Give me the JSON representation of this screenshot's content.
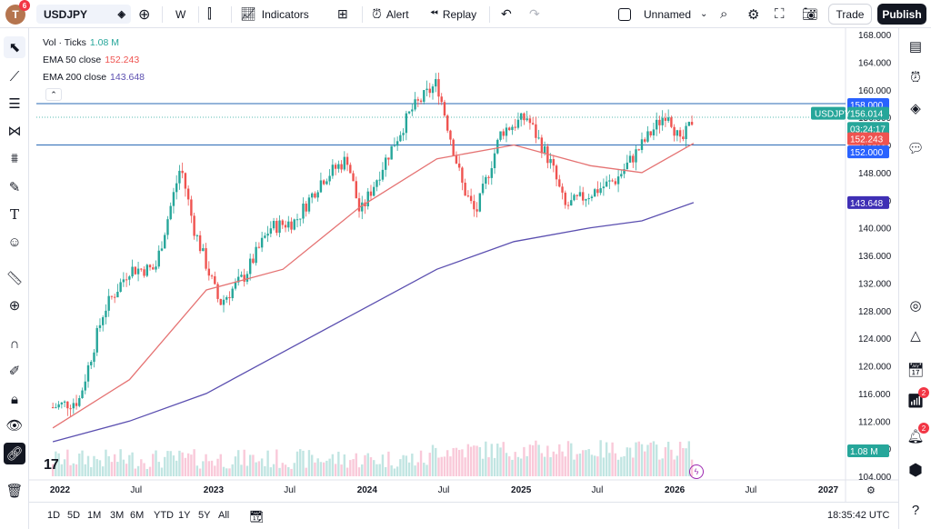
{
  "header": {
    "avatar_letter": "T",
    "avatar_badge": "6",
    "symbol": "USDJPY",
    "interval": "W",
    "indicators_label": "Indicators",
    "alert_label": "Alert",
    "replay_label": "Replay",
    "layout_name": "Unnamed",
    "trade_label": "Trade",
    "publish_label": "Publish"
  },
  "legend": {
    "vol_label": "Vol · Ticks",
    "vol_value": "1.08 M",
    "ema50_label": "EMA 50 close",
    "ema50_value": "152.243",
    "ema200_label": "EMA 200 close",
    "ema200_value": "143.648"
  },
  "colors": {
    "up": "#26a69a",
    "down": "#ef5350",
    "ema50": "#e57373",
    "ema200": "#5b4fb0",
    "hline": "#2a6ab5",
    "accent": "#2962ff"
  },
  "price_axis": {
    "ticks": [
      "168.000",
      "164.000",
      "160.000",
      "156.000",
      "152.000",
      "148.000",
      "144.000",
      "140.000",
      "136.000",
      "132.000",
      "128.000",
      "124.000",
      "120.000",
      "116.000",
      "112.000",
      "108.000",
      "104.000"
    ],
    "labels": [
      {
        "text": "158.000",
        "kind": "line"
      },
      {
        "text": "156.014",
        "kind": "price"
      },
      {
        "text": "03:24:17",
        "kind": "countdown"
      },
      {
        "text": "152.243",
        "kind": "ema50"
      },
      {
        "text": "152.000",
        "kind": "line"
      },
      {
        "text": "143.648",
        "kind": "ema200"
      },
      {
        "text": "1.08 M",
        "kind": "volume"
      }
    ],
    "symbol_tag": "USDJPY"
  },
  "time_axis": [
    "2022",
    "Jul",
    "2023",
    "Jul",
    "2024",
    "Jul",
    "2025",
    "Jul",
    "2026",
    "Jul",
    "2027"
  ],
  "ranges": [
    "1D",
    "5D",
    "1M",
    "3M",
    "6M",
    "YTD",
    "1Y",
    "5Y",
    "All"
  ],
  "clock": "18:35:42 UTC",
  "right_badges": [
    "2",
    "2"
  ],
  "chart_data": {
    "type": "candlestick",
    "symbol": "USDJPY",
    "interval": "W",
    "ylim": [
      104,
      168
    ],
    "horizontal_lines": [
      158.0,
      152.0
    ],
    "current_price": 156.014,
    "path_keypoints": [
      {
        "x": "2021-12",
        "y": 114
      },
      {
        "x": "2022-02",
        "y": 115
      },
      {
        "x": "2022-04",
        "y": 128
      },
      {
        "x": "2022-06",
        "y": 134
      },
      {
        "x": "2022-08",
        "y": 134
      },
      {
        "x": "2022-10",
        "y": 149
      },
      {
        "x": "2022-11",
        "y": 140
      },
      {
        "x": "2023-01",
        "y": 129
      },
      {
        "x": "2023-03",
        "y": 133
      },
      {
        "x": "2023-05",
        "y": 140
      },
      {
        "x": "2023-07",
        "y": 141
      },
      {
        "x": "2023-09",
        "y": 147
      },
      {
        "x": "2023-11",
        "y": 150
      },
      {
        "x": "2023-12",
        "y": 142
      },
      {
        "x": "2024-02",
        "y": 150
      },
      {
        "x": "2024-04",
        "y": 157
      },
      {
        "x": "2024-06",
        "y": 161
      },
      {
        "x": "2024-08",
        "y": 146
      },
      {
        "x": "2024-09",
        "y": 142
      },
      {
        "x": "2024-11",
        "y": 154
      },
      {
        "x": "2025-01",
        "y": 156
      },
      {
        "x": "2025-03",
        "y": 149
      },
      {
        "x": "2025-04",
        "y": 143
      },
      {
        "x": "2025-06",
        "y": 145
      },
      {
        "x": "2025-08",
        "y": 147
      },
      {
        "x": "2025-10",
        "y": 152
      },
      {
        "x": "2025-12",
        "y": 157
      },
      {
        "x": "2026-01",
        "y": 152
      },
      {
        "x": "2026-02",
        "y": 156
      }
    ],
    "ema50_keypoints": [
      {
        "x": "2021-12",
        "y": 111
      },
      {
        "x": "2022-06",
        "y": 118
      },
      {
        "x": "2022-12",
        "y": 131
      },
      {
        "x": "2023-06",
        "y": 134
      },
      {
        "x": "2023-12",
        "y": 143
      },
      {
        "x": "2024-06",
        "y": 150
      },
      {
        "x": "2024-12",
        "y": 152
      },
      {
        "x": "2025-06",
        "y": 149
      },
      {
        "x": "2025-10",
        "y": 148
      },
      {
        "x": "2026-02",
        "y": 152.243
      }
    ],
    "ema200_keypoints": [
      {
        "x": "2021-12",
        "y": 109
      },
      {
        "x": "2022-06",
        "y": 112
      },
      {
        "x": "2022-12",
        "y": 116
      },
      {
        "x": "2023-06",
        "y": 122
      },
      {
        "x": "2023-12",
        "y": 128
      },
      {
        "x": "2024-06",
        "y": 134
      },
      {
        "x": "2024-12",
        "y": 138
      },
      {
        "x": "2025-06",
        "y": 140
      },
      {
        "x": "2025-10",
        "y": 141
      },
      {
        "x": "2026-02",
        "y": 143.648
      }
    ]
  }
}
